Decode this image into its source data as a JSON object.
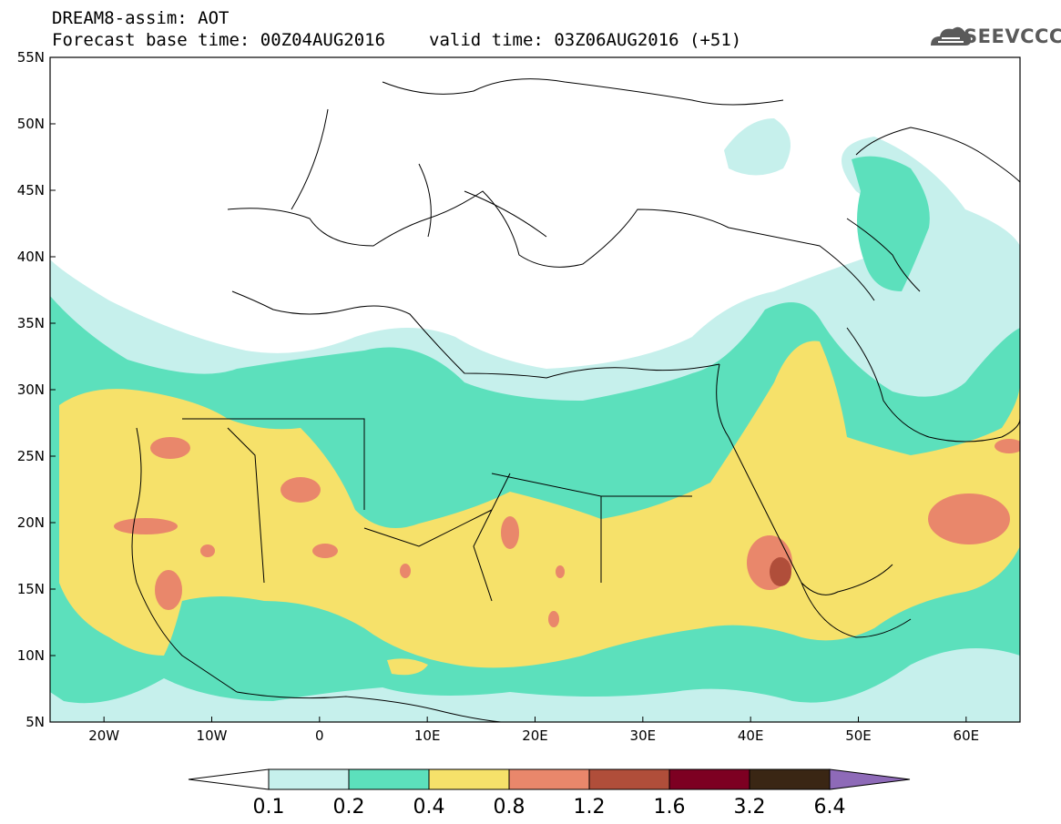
{
  "header": {
    "line1": "DREAM8-assim: AOT",
    "base_label": "Forecast base time: 00Z04AUG2016",
    "valid_label": "valid time: 03Z06AUG2016 (+51)"
  },
  "logo": {
    "text": "SEEVCCC",
    "icon": "cloud-logo-icon"
  },
  "map": {
    "lon_range": [
      -25,
      65
    ],
    "lat_range": [
      5,
      55
    ],
    "lon_ticks": [
      "20W",
      "10W",
      "0",
      "10E",
      "20E",
      "30E",
      "40E",
      "50E",
      "60E"
    ],
    "lat_ticks": [
      "5N",
      "10N",
      "15N",
      "20N",
      "25N",
      "30N",
      "35N",
      "40N",
      "45N",
      "50N",
      "55N"
    ]
  },
  "colorbar": {
    "labels": [
      "0.1",
      "0.2",
      "0.4",
      "0.8",
      "1.2",
      "1.6",
      "3.2",
      "6.4"
    ],
    "colors": [
      "#ffffff",
      "#c6f0ec",
      "#5ce0bc",
      "#f6e16a",
      "#e9876b",
      "#b04e3a",
      "#7d0022",
      "#3a2614",
      "#8e6ab8"
    ]
  }
}
